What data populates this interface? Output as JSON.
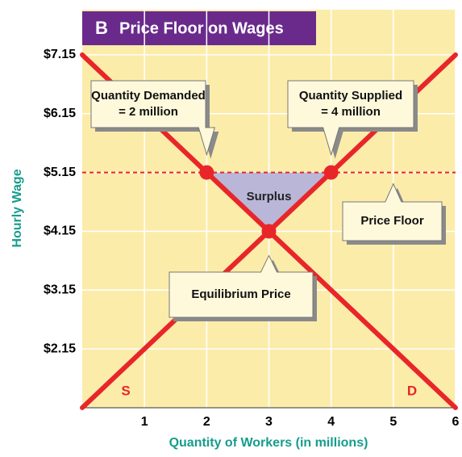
{
  "chart_data": {
    "type": "line",
    "panel_label": "B",
    "title": "Price Floor on Wages",
    "xlabel": "Quantity of Workers (in millions)",
    "ylabel": "Hourly Wage",
    "xlim": [
      0,
      6
    ],
    "ylim": [
      1.15,
      7.3
    ],
    "xticks": [
      1,
      2,
      3,
      4,
      5,
      6
    ],
    "yticks": [
      {
        "value": 2.15,
        "label": "$2.15"
      },
      {
        "value": 3.15,
        "label": "$3.15"
      },
      {
        "value": 4.15,
        "label": "$4.15"
      },
      {
        "value": 5.15,
        "label": "$5.15"
      },
      {
        "value": 6.15,
        "label": "$6.15"
      },
      {
        "value": 7.15,
        "label": "$7.15"
      }
    ],
    "grid": true,
    "series": [
      {
        "name": "S",
        "color": "#e8262a",
        "x": [
          0,
          6
        ],
        "values": [
          1.15,
          7.15
        ]
      },
      {
        "name": "D",
        "color": "#e8262a",
        "x": [
          0,
          6
        ],
        "values": [
          7.15,
          1.15
        ]
      }
    ],
    "points": {
      "x": [
        2,
        3,
        4
      ],
      "values": [
        5.15,
        4.15,
        5.15
      ]
    },
    "price_floor": 5.15,
    "surplus_label": "Surplus",
    "annotations": [
      {
        "lines": [
          "Quantity Demanded",
          "= 2 million"
        ]
      },
      {
        "lines": [
          "Quantity Supplied",
          "= 4 million"
        ]
      },
      {
        "lines": [
          "Price Floor"
        ]
      },
      {
        "lines": [
          "Equilibrium Price"
        ]
      }
    ]
  }
}
